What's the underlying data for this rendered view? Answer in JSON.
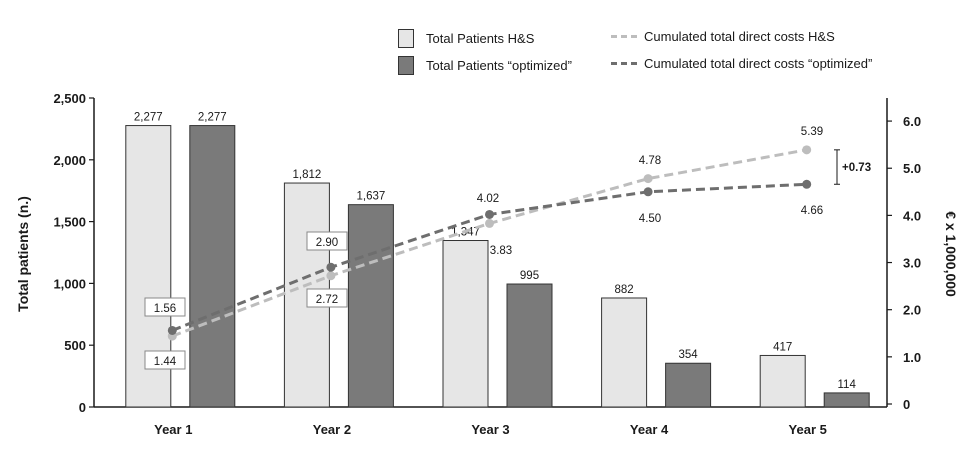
{
  "legend": {
    "bars_hs": "Total Patients H&S",
    "bars_opt": "Total Patients “optimized”",
    "line_hs": "Cumulated total direct costs H&S",
    "line_opt": "Cumulated total direct costs “optimized”"
  },
  "colors": {
    "bar_hs": "#e6e6e6",
    "bar_opt": "#7a7a7a",
    "line_hs": "#bdbdbd",
    "line_opt": "#6e6e6e",
    "axis": "#1a1a1a"
  },
  "chart_data": {
    "type": "bar",
    "categories": [
      "Year 1",
      "Year 2",
      "Year 3",
      "Year 4",
      "Year 5"
    ],
    "ylabel": "Total patients (n.)",
    "ylabel_right": "€ x 1,000,000",
    "ylim": [
      0,
      2500
    ],
    "yticks": [
      "0",
      "500",
      "1,000",
      "1,500",
      "2,000",
      "2,500"
    ],
    "ylim_right": [
      0,
      6.5
    ],
    "yticks_right": [
      "0",
      "1.0",
      "2.0",
      "3.0",
      "4.0",
      "5.0",
      "6.0"
    ],
    "series": [
      {
        "name": "Total Patients H&S",
        "kind": "bar",
        "values": [
          2277,
          1812,
          1347,
          882,
          417
        ],
        "labels": [
          "2,277",
          "1,812",
          "1,347",
          "882",
          "417"
        ]
      },
      {
        "name": "Total Patients “optimized”",
        "kind": "bar",
        "values": [
          2277,
          1637,
          995,
          354,
          114
        ],
        "labels": [
          "2,277",
          "1,637",
          "995",
          "354",
          "114"
        ]
      },
      {
        "name": "Cumulated total direct costs H&S",
        "kind": "line",
        "axis": "right",
        "values": [
          1.44,
          2.72,
          3.83,
          4.78,
          5.39
        ],
        "labels": [
          "1.44",
          "2.72",
          "3.83",
          "4.78",
          "5.39"
        ]
      },
      {
        "name": "Cumulated total direct costs “optimized”",
        "kind": "line",
        "axis": "right",
        "values": [
          1.56,
          2.9,
          4.02,
          4.5,
          4.66
        ],
        "labels": [
          "1.56",
          "2.90",
          "4.02",
          "4.50",
          "4.66"
        ]
      }
    ],
    "annotation": "+0.73",
    "legend_position": "top-right",
    "grid": false
  }
}
